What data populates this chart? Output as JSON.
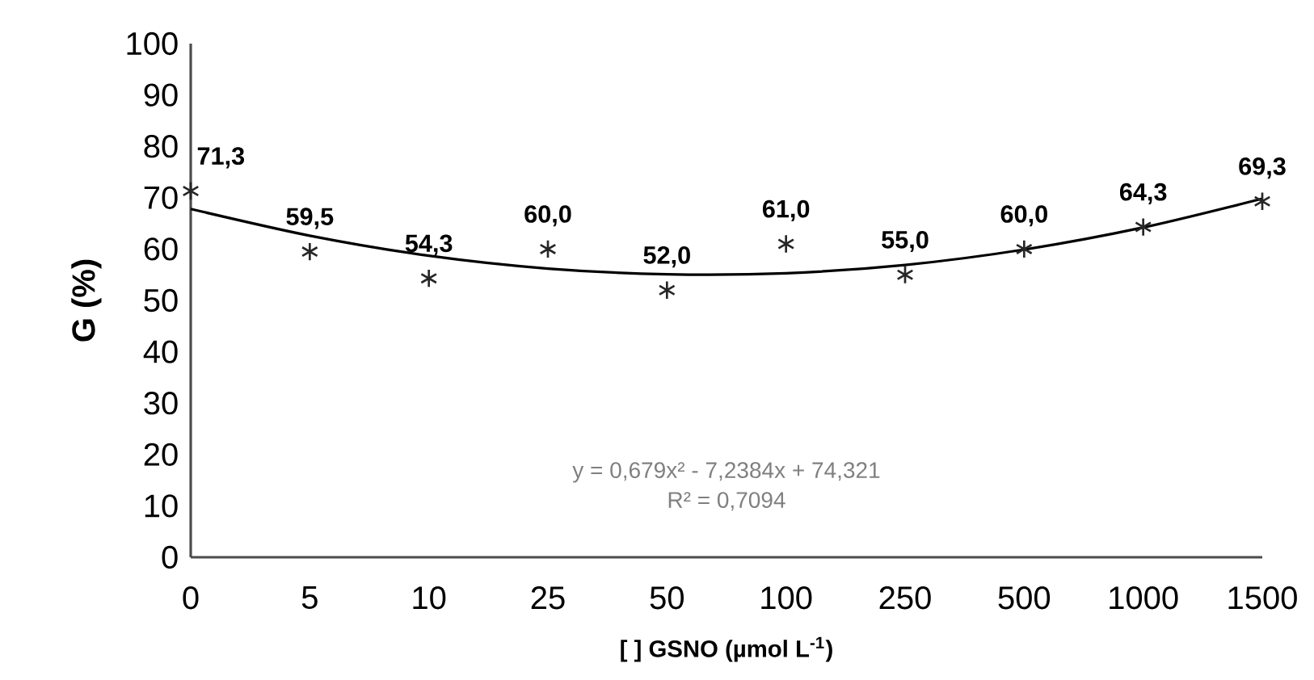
{
  "chart_data": {
    "type": "scatter",
    "xlabel": "[ ] GSNO (µmol L$^{-1}$)",
    "ylabel": "G (%)",
    "categories": [
      "0",
      "5",
      "10",
      "25",
      "50",
      "100",
      "250",
      "500",
      "1000",
      "1500"
    ],
    "series": [
      {
        "color": "#262626",
        "marker": "cross",
        "values": [
          71.3,
          59.5,
          54.3,
          60.0,
          52.0,
          61.0,
          55.0,
          60.0,
          64.3,
          69.3
        ],
        "value_labels": [
          "71,3",
          "59,5",
          "54,3",
          "60,0",
          "52,0",
          "61,0",
          "55,0",
          "60,0",
          "64,3",
          "69,3"
        ]
      },
      {
        "type": "line",
        "color": "#000000",
        "marker": "none",
        "line_style": "solid",
        "values": [
          67.8,
          62.6,
          58.7,
          56.2,
          55.1,
          55.3,
          56.9,
          59.9,
          64.2,
          69.8
        ]
      }
    ],
    "ylim": [
      0,
      100
    ],
    "yticks": [
      0,
      10,
      20,
      30,
      40,
      50,
      60,
      70,
      80,
      90,
      100
    ],
    "grid": false,
    "annotations": [
      "y = 0,679x² - 7,2384x + 74,321",
      "R² = 0,7094"
    ]
  }
}
